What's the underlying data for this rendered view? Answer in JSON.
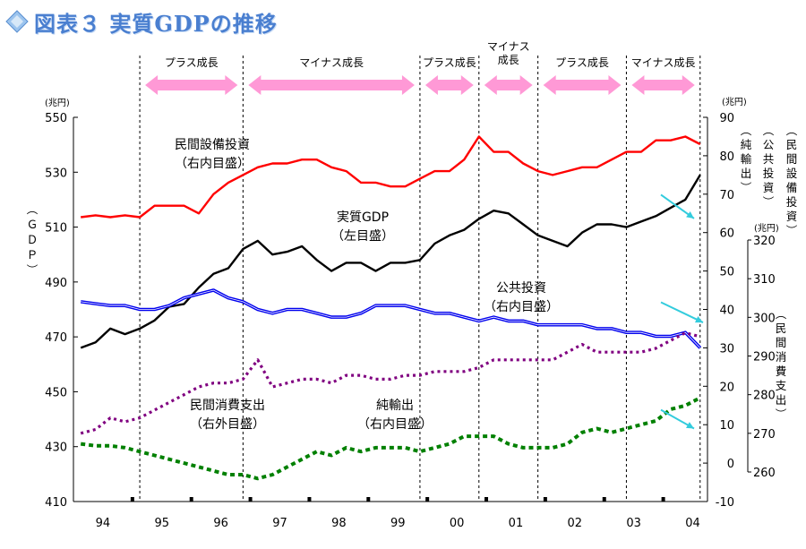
{
  "title": "図表３ 実質GDPの推移",
  "colors": {
    "gdp": "#000000",
    "capex": "#ff0000",
    "public_investment": "#0000ee",
    "consumption": "#800080",
    "net_exports": "#008000",
    "phase_arrow": "#ff99d6",
    "trend_arrow": "#33ccdd",
    "title": "#4a7fd0"
  },
  "chart_data": {
    "type": "line",
    "title": "図表３ 実質GDPの推移",
    "x_tick_labels": [
      "94",
      "95",
      "96",
      "97",
      "98",
      "99",
      "00",
      "01",
      "02",
      "03",
      "04"
    ],
    "x_quarter_count": 43,
    "phases": [
      {
        "label": "プラス成長",
        "start_q": 4.5,
        "end_q": 11.5
      },
      {
        "label": "マイナス成長",
        "start_q": 11.5,
        "end_q": 23.5
      },
      {
        "label": "プラス成長",
        "start_q": 23.5,
        "end_q": 27.5
      },
      {
        "label": "マイナス\n成長",
        "start_q": 27.5,
        "end_q": 31.5
      },
      {
        "label": "プラス成長",
        "start_q": 31.5,
        "end_q": 37.5
      },
      {
        "label": "マイナス成長",
        "start_q": 37.5,
        "end_q": 42.5
      }
    ],
    "axes": {
      "left": {
        "label": "（ＧＤＰ）",
        "unit": "(兆円)",
        "min": 410,
        "max": 550,
        "ticks": [
          410,
          430,
          450,
          470,
          490,
          510,
          530,
          550
        ]
      },
      "right_inner": {
        "label": "（民間設備投資）（公共投資）（純輸出）",
        "unit": "(兆円)",
        "min": -10,
        "max": 90,
        "ticks": [
          -10,
          0,
          10,
          20,
          30,
          40,
          50,
          60,
          70,
          80,
          90
        ]
      },
      "right_outer": {
        "label": "（民間消費支出）",
        "unit": "(兆円)",
        "min": 260,
        "max": 320,
        "ticks": [
          260,
          270,
          280,
          290,
          300,
          310,
          320
        ]
      }
    },
    "series": [
      {
        "name": "実質GDP",
        "axis": "left",
        "values": [
          466,
          468,
          473,
          471,
          473,
          476,
          481,
          482,
          488,
          493,
          495,
          502,
          505,
          500,
          501,
          503,
          498,
          494,
          497,
          497,
          494,
          497,
          497,
          498,
          504,
          507,
          509,
          513,
          516,
          515,
          511,
          507,
          505,
          503,
          508,
          511,
          511,
          510,
          512,
          514,
          517,
          520,
          529
        ]
      },
      {
        "name": "民間設備投資",
        "axis": "right_inner",
        "values": [
          64,
          64.5,
          64,
          64.5,
          64,
          67,
          67,
          67,
          65,
          70,
          73,
          75,
          77,
          78,
          78,
          79,
          79,
          77,
          76,
          73,
          73,
          72,
          72,
          74,
          76,
          76,
          79,
          85,
          81,
          81,
          78,
          76,
          75,
          76,
          77,
          77,
          79,
          81,
          81,
          84,
          84,
          85,
          83
        ]
      },
      {
        "name": "公共投資",
        "axis": "right_inner",
        "values": [
          42,
          41.5,
          41,
          41,
          40,
          40,
          41,
          43,
          44,
          45,
          43,
          42,
          40,
          39,
          40,
          40,
          39,
          38,
          38,
          39,
          41,
          41,
          41,
          40,
          39,
          39,
          38,
          37,
          38,
          37,
          37,
          36,
          36,
          36,
          36,
          35,
          35,
          34,
          34,
          33,
          33,
          34,
          30
        ]
      },
      {
        "name": "民間消費支出",
        "axis": "right_outer",
        "values": [
          270,
          271,
          274,
          273,
          274,
          276,
          278,
          280,
          282,
          283,
          283,
          284,
          289,
          282,
          283,
          284,
          284,
          283,
          285,
          285,
          284,
          284,
          285,
          285,
          286,
          286,
          286,
          287,
          289,
          289,
          289,
          289,
          289,
          291,
          293,
          291,
          291,
          291,
          291,
          292,
          294,
          296,
          295
        ]
      },
      {
        "name": "純輸出",
        "axis": "right_inner",
        "values": [
          5,
          4.5,
          4.5,
          4,
          3,
          2,
          1,
          0,
          -1,
          -2,
          -3,
          -3,
          -4,
          -3,
          -1,
          1,
          3,
          2,
          4,
          3,
          4,
          4,
          4,
          3,
          4,
          5,
          7,
          7,
          7,
          5,
          4,
          4,
          4,
          5,
          8,
          9,
          8,
          9,
          10,
          11,
          14,
          15,
          17
        ]
      }
    ],
    "annotations": [
      {
        "text": "民間設備投資\n（右内目盛）",
        "series": "民間設備投資"
      },
      {
        "text": "実質GDP\n（左目盛）",
        "series": "実質GDP"
      },
      {
        "text": "公共投資\n（右内目盛）",
        "series": "公共投資"
      },
      {
        "text": "民間消費支出\n（右外目盛）",
        "series": "民間消費支出"
      },
      {
        "text": "純輸出\n（右内目盛）",
        "series": "純輸出"
      }
    ],
    "grid": false
  }
}
